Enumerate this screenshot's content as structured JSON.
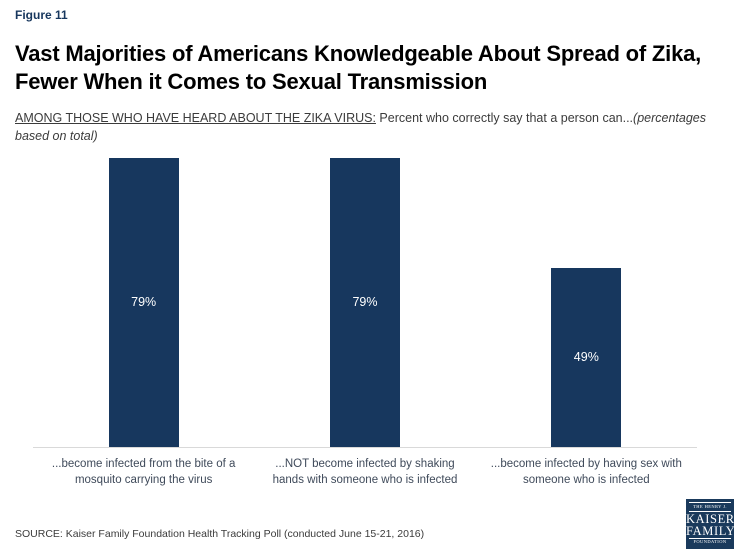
{
  "header": {
    "figure_label": "Figure 11",
    "title": "Vast Majorities of Americans Knowledgeable About Spread of Zika, Fewer When it Comes to Sexual Transmission",
    "subtitle_underlined": "AMONG THOSE WHO HAVE HEARD ABOUT THE ZIKA VIRUS:",
    "subtitle_plain": " Percent who correctly say that a person can...",
    "subtitle_italic": "(percentages based on total)"
  },
  "chart_data": {
    "type": "bar",
    "title": "",
    "xlabel": "",
    "ylabel": "",
    "categories": [
      "...become infected from the bite of a mosquito carrying the virus",
      "...NOT become infected by shaking hands with someone who is infected",
      "...become infected by having sex with someone who is infected"
    ],
    "values": [
      79,
      79,
      49
    ],
    "value_labels": [
      "79%",
      "79%",
      "49%"
    ],
    "ylim": [
      0,
      100
    ],
    "grid": false,
    "legend": false,
    "bar_color": "#17375E",
    "value_label_color": "#FFFFFF",
    "baseline_color": "#D9D9D9"
  },
  "footer": {
    "source": "SOURCE: Kaiser Family Foundation Health Tracking Poll (conducted June 15-21, 2016)"
  },
  "logo": {
    "line1": "THE HENRY J.",
    "line2": "KAISER",
    "line3": "FAMILY",
    "line4": "FOUNDATION",
    "bg_color": "#1A3A5C"
  }
}
